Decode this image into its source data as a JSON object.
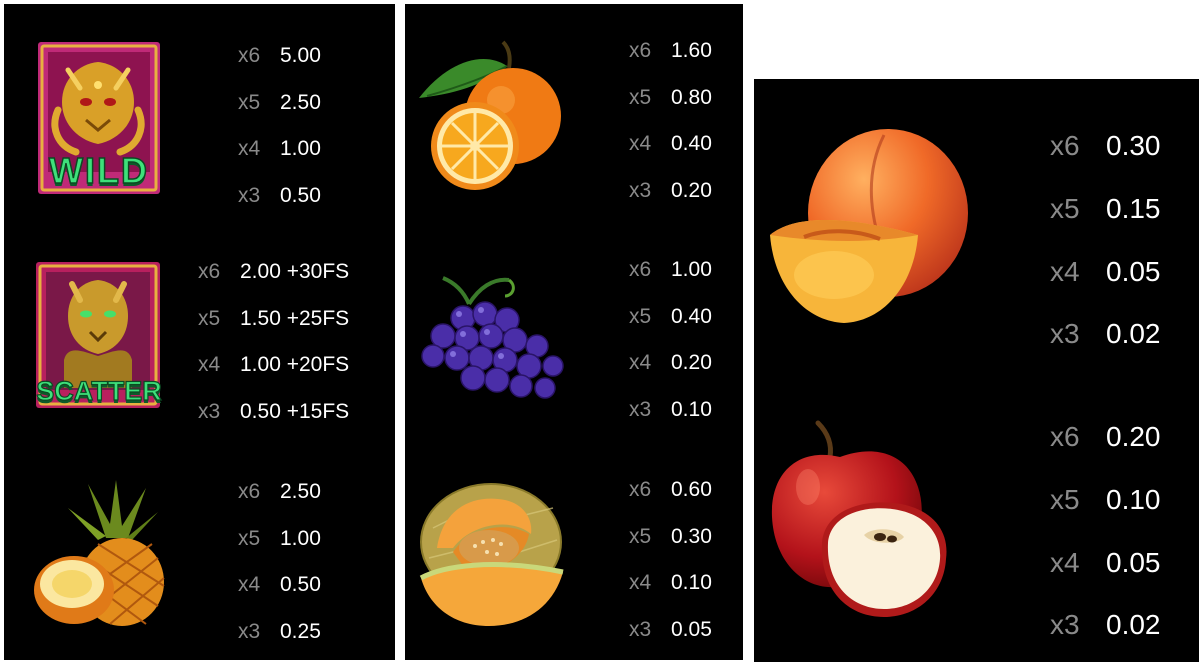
{
  "panels": [
    {
      "symbols": [
        {
          "name": "wild",
          "icon": "wild-dragon-icon",
          "badge_text": "WILD",
          "pays": [
            {
              "count": "x6",
              "payout": "5.00"
            },
            {
              "count": "x5",
              "payout": "2.50"
            },
            {
              "count": "x4",
              "payout": "1.00"
            },
            {
              "count": "x3",
              "payout": "0.50"
            }
          ]
        },
        {
          "name": "scatter",
          "icon": "scatter-tiger-icon",
          "badge_text": "SCATTER",
          "pays": [
            {
              "count": "x6",
              "payout": "2.00 +30FS"
            },
            {
              "count": "x5",
              "payout": "1.50 +25FS"
            },
            {
              "count": "x4",
              "payout": "1.00 +20FS"
            },
            {
              "count": "x3",
              "payout": "0.50 +15FS"
            }
          ]
        },
        {
          "name": "pineapple",
          "icon": "pineapple-icon",
          "pays": [
            {
              "count": "x6",
              "payout": "2.50"
            },
            {
              "count": "x5",
              "payout": "1.00"
            },
            {
              "count": "x4",
              "payout": "0.50"
            },
            {
              "count": "x3",
              "payout": "0.25"
            }
          ]
        }
      ]
    },
    {
      "symbols": [
        {
          "name": "orange",
          "icon": "orange-icon",
          "pays": [
            {
              "count": "x6",
              "payout": "1.60"
            },
            {
              "count": "x5",
              "payout": "0.80"
            },
            {
              "count": "x4",
              "payout": "0.40"
            },
            {
              "count": "x3",
              "payout": "0.20"
            }
          ]
        },
        {
          "name": "grapes",
          "icon": "grapes-icon",
          "pays": [
            {
              "count": "x6",
              "payout": "1.00"
            },
            {
              "count": "x5",
              "payout": "0.40"
            },
            {
              "count": "x4",
              "payout": "0.20"
            },
            {
              "count": "x3",
              "payout": "0.10"
            }
          ]
        },
        {
          "name": "melon",
          "icon": "melon-icon",
          "pays": [
            {
              "count": "x6",
              "payout": "0.60"
            },
            {
              "count": "x5",
              "payout": "0.30"
            },
            {
              "count": "x4",
              "payout": "0.10"
            },
            {
              "count": "x3",
              "payout": "0.05"
            }
          ]
        }
      ]
    },
    {
      "symbols": [
        {
          "name": "peach",
          "icon": "peach-icon",
          "pays": [
            {
              "count": "x6",
              "payout": "0.30"
            },
            {
              "count": "x5",
              "payout": "0.15"
            },
            {
              "count": "x4",
              "payout": "0.05"
            },
            {
              "count": "x3",
              "payout": "0.02"
            }
          ]
        },
        {
          "name": "apple",
          "icon": "apple-icon",
          "pays": [
            {
              "count": "x6",
              "payout": "0.20"
            },
            {
              "count": "x5",
              "payout": "0.10"
            },
            {
              "count": "x4",
              "payout": "0.05"
            },
            {
              "count": "x3",
              "payout": "0.02"
            }
          ]
        }
      ]
    }
  ]
}
